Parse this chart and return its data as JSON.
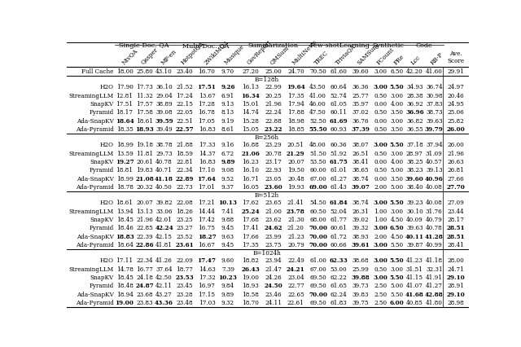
{
  "col_groups": [
    {
      "name": "Single-Doc. QA",
      "start": 1,
      "end": 3
    },
    {
      "name": "Multi-Doc. QA",
      "start": 4,
      "end": 6
    },
    {
      "name": "Summarization",
      "start": 7,
      "end": 9
    },
    {
      "name": "Few-shotLearning",
      "start": 10,
      "end": 12
    },
    {
      "name": "Synthetic",
      "start": 13,
      "end": 14
    },
    {
      "name": "Code",
      "start": 15,
      "end": 16
    }
  ],
  "col_names": [
    "NtvQA",
    "Qasper",
    "MF-en",
    "HotpotQA",
    "2WikiMQA",
    "Musique",
    "GovReport",
    "QMSum",
    "MultiNews",
    "TREC",
    "TriviaQA",
    "SAMSum",
    "PCount",
    "PRe",
    "Lcc",
    "RB-P"
  ],
  "sections": [
    {
      "header": null,
      "rows": [
        {
          "label": "Full Cache",
          "values": [
            "18.00",
            "25.80",
            "43.10",
            "23.40",
            "16.70",
            "9.70",
            "27.20",
            "25.00",
            "24.70",
            "70.50",
            "61.60",
            "39.60",
            "3.00",
            "6.50",
            "42.20",
            "41.60",
            "29.91"
          ],
          "bold": []
        }
      ]
    },
    {
      "header": "B=128h",
      "rows": [
        {
          "label": "H2O",
          "values": [
            "17.90",
            "17.73",
            "36.10",
            "21.52",
            "17.51",
            "9.26",
            "16.13",
            "22.99",
            "19.64",
            "43.50",
            "60.64",
            "36.36",
            "3.00",
            "5.50",
            "34.93",
            "36.74",
            "24.97"
          ],
          "bold": [
            4,
            5,
            8,
            12,
            13
          ]
        },
        {
          "label": "StreamingLLM",
          "values": [
            "12.81",
            "11.32",
            "29.04",
            "17.24",
            "13.67",
            "6.91",
            "16.34",
            "20.25",
            "17.35",
            "41.00",
            "52.74",
            "25.77",
            "0.50",
            "3.00",
            "28.38",
            "30.98",
            "20.46"
          ],
          "bold": [
            6
          ]
        },
        {
          "label": "SnapKV",
          "values": [
            "17.51",
            "17.57",
            "38.89",
            "22.15",
            "17.28",
            "9.13",
            "15.01",
            "21.96",
            "17.94",
            "46.00",
            "61.05",
            "35.97",
            "0.00",
            "4.00",
            "36.92",
            "37.83",
            "24.95"
          ],
          "bold": []
        },
        {
          "label": "Pyramid",
          "values": [
            "18.17",
            "17.58",
            "39.08",
            "22.05",
            "16.78",
            "8.13",
            "14.74",
            "22.24",
            "17.88",
            "47.50",
            "60.11",
            "37.02",
            "0.50",
            "3.50",
            "36.96",
            "38.73",
            "25.06"
          ],
          "bold": [
            14
          ]
        },
        {
          "label": "Ada-SnapKV",
          "values": [
            "18.64",
            "18.61",
            "39.59",
            "22.51",
            "17.05",
            "9.19",
            "15.28",
            "22.88",
            "18.98",
            "52.50",
            "61.69",
            "36.76",
            "0.00",
            "3.00",
            "36.82",
            "39.63",
            "25.82"
          ],
          "bold": [
            0,
            2,
            10
          ]
        },
        {
          "label": "Ada-Pyramid",
          "values": [
            "18.35",
            "18.93",
            "39.49",
            "22.57",
            "16.83",
            "8.61",
            "15.05",
            "23.22",
            "18.85",
            "55.50",
            "60.93",
            "37.39",
            "0.50",
            "3.50",
            "36.55",
            "39.79",
            "26.00"
          ],
          "bold": [
            1,
            3,
            7,
            9,
            11,
            15,
            16
          ]
        }
      ]
    },
    {
      "header": "B=256h",
      "rows": [
        {
          "label": "H2O",
          "values": [
            "18.99",
            "19.18",
            "38.78",
            "21.88",
            "17.33",
            "9.16",
            "16.88",
            "23.29",
            "20.51",
            "48.00",
            "60.36",
            "38.07",
            "3.00",
            "5.50",
            "37.18",
            "37.94",
            "26.00"
          ],
          "bold": [
            12,
            13
          ]
        },
        {
          "label": "StreamingLLM",
          "values": [
            "13.59",
            "11.81",
            "29.73",
            "18.59",
            "14.37",
            "6.72",
            "21.06",
            "20.78",
            "21.29",
            "51.50",
            "51.92",
            "26.51",
            "0.50",
            "3.00",
            "28.97",
            "31.09",
            "21.96"
          ],
          "bold": [
            6,
            8
          ]
        },
        {
          "label": "SnapKV",
          "values": [
            "19.27",
            "20.61",
            "40.78",
            "22.81",
            "16.83",
            "9.89",
            "16.23",
            "23.17",
            "20.07",
            "53.50",
            "61.75",
            "38.41",
            "0.00",
            "4.00",
            "38.25",
            "40.57",
            "26.63"
          ],
          "bold": [
            0,
            5,
            10
          ]
        },
        {
          "label": "Pyramid",
          "values": [
            "18.81",
            "19.83",
            "40.71",
            "22.34",
            "17.10",
            "9.08",
            "16.10",
            "22.93",
            "19.50",
            "60.00",
            "61.01",
            "38.65",
            "0.50",
            "5.00",
            "38.23",
            "39.13",
            "26.81"
          ],
          "bold": []
        },
        {
          "label": "Ada-SnapKV",
          "values": [
            "18.99",
            "21.08",
            "41.18",
            "22.89",
            "17.64",
            "9.52",
            "16.71",
            "23.05",
            "20.48",
            "67.00",
            "61.27",
            "38.74",
            "0.00",
            "3.50",
            "39.60",
            "40.96",
            "27.66"
          ],
          "bold": [
            1,
            2,
            3,
            4,
            14,
            15
          ]
        },
        {
          "label": "Ada-Pyramid",
          "values": [
            "18.78",
            "20.32",
            "40.50",
            "22.73",
            "17.01",
            "9.37",
            "16.05",
            "23.60",
            "19.93",
            "69.00",
            "61.43",
            "39.07",
            "2.00",
            "5.00",
            "38.40",
            "40.08",
            "27.70"
          ],
          "bold": [
            7,
            9,
            11,
            16
          ]
        }
      ]
    },
    {
      "header": "B=512h",
      "rows": [
        {
          "label": "H2O",
          "values": [
            "18.61",
            "20.07",
            "39.82",
            "22.08",
            "17.21",
            "10.13",
            "17.62",
            "23.65",
            "21.41",
            "54.50",
            "61.84",
            "38.74",
            "3.00",
            "5.50",
            "39.23",
            "40.08",
            "27.09"
          ],
          "bold": [
            5,
            10,
            12,
            13
          ]
        },
        {
          "label": "StreamingLLM",
          "values": [
            "13.94",
            "13.13",
            "33.06",
            "18.26",
            "14.44",
            "7.41",
            "25.24",
            "21.00",
            "23.78",
            "60.50",
            "52.04",
            "26.31",
            "1.00",
            "3.00",
            "30.10",
            "31.76",
            "23.44"
          ],
          "bold": [
            6,
            8
          ]
        },
        {
          "label": "SnapKV",
          "values": [
            "18.45",
            "21.96",
            "42.01",
            "23.25",
            "17.42",
            "9.88",
            "17.68",
            "23.62",
            "21.30",
            "68.00",
            "61.77",
            "39.02",
            "1.00",
            "4.50",
            "40.09",
            "40.79",
            "28.17"
          ],
          "bold": []
        },
        {
          "label": "Pyramid",
          "values": [
            "18.46",
            "22.85",
            "42.24",
            "23.27",
            "16.75",
            "9.45",
            "17.41",
            "24.62",
            "21.20",
            "70.00",
            "60.61",
            "39.32",
            "3.00",
            "6.50",
            "39.63",
            "40.78",
            "28.51"
          ],
          "bold": [
            2,
            7,
            9,
            12,
            13,
            16
          ]
        },
        {
          "label": "Ada-SnapKV",
          "values": [
            "18.83",
            "22.39",
            "42.15",
            "23.52",
            "18.27",
            "9.63",
            "17.66",
            "23.99",
            "21.23",
            "70.00",
            "61.72",
            "38.93",
            "2.00",
            "4.50",
            "40.11",
            "41.28",
            "28.51"
          ],
          "bold": [
            0,
            4,
            9,
            14,
            15,
            16
          ]
        },
        {
          "label": "Ada-Pyramid",
          "values": [
            "18.64",
            "22.86",
            "41.81",
            "23.61",
            "16.67",
            "9.45",
            "17.35",
            "23.75",
            "20.79",
            "70.00",
            "60.66",
            "39.61",
            "3.00",
            "5.50",
            "39.87",
            "40.99",
            "28.41"
          ],
          "bold": [
            1,
            3,
            9,
            11,
            12
          ]
        }
      ]
    },
    {
      "header": "B=1024h",
      "rows": [
        {
          "label": "H2O",
          "values": [
            "17.11",
            "22.34",
            "41.26",
            "22.09",
            "17.47",
            "9.60",
            "18.82",
            "23.94",
            "22.49",
            "61.00",
            "62.33",
            "38.68",
            "3.00",
            "5.50",
            "41.23",
            "41.18",
            "28.00"
          ],
          "bold": [
            4,
            10,
            12,
            13
          ]
        },
        {
          "label": "StreamingLLM",
          "values": [
            "14.78",
            "16.77",
            "37.64",
            "18.77",
            "14.63",
            "7.39",
            "26.43",
            "21.47",
            "24.21",
            "67.00",
            "53.00",
            "25.99",
            "0.50",
            "3.00",
            "31.51",
            "32.31",
            "24.71"
          ],
          "bold": [
            6,
            8
          ]
        },
        {
          "label": "SnapKV",
          "values": [
            "18.45",
            "24.18",
            "42.50",
            "23.53",
            "17.32",
            "10.23",
            "19.00",
            "24.26",
            "23.04",
            "69.50",
            "62.22",
            "39.88",
            "3.00",
            "5.50",
            "41.15",
            "41.91",
            "29.10"
          ],
          "bold": [
            3,
            5,
            11,
            12,
            13,
            16
          ]
        },
        {
          "label": "Pyramid",
          "values": [
            "18.48",
            "24.87",
            "42.11",
            "23.45",
            "16.97",
            "9.84",
            "18.93",
            "24.50",
            "22.77",
            "69.50",
            "61.65",
            "39.73",
            "2.50",
            "5.00",
            "41.07",
            "41.27",
            "28.91"
          ],
          "bold": [
            1,
            7
          ]
        },
        {
          "label": "Ada-SnapKV",
          "values": [
            "18.94",
            "23.68",
            "43.27",
            "23.28",
            "17.15",
            "9.89",
            "18.58",
            "23.46",
            "22.65",
            "70.00",
            "62.24",
            "39.83",
            "2.50",
            "5.50",
            "41.68",
            "42.88",
            "29.10"
          ],
          "bold": [
            9,
            14,
            15,
            16
          ]
        },
        {
          "label": "Ada-Pyramid",
          "values": [
            "19.00",
            "23.83",
            "43.36",
            "23.48",
            "17.03",
            "9.32",
            "18.70",
            "24.11",
            "22.61",
            "69.50",
            "61.83",
            "39.75",
            "2.50",
            "6.00",
            "40.85",
            "41.80",
            "28.98"
          ],
          "bold": [
            0,
            2,
            13
          ]
        }
      ]
    }
  ],
  "font_size_data": 5.2,
  "font_size_group": 5.8,
  "font_size_header": 5.2
}
